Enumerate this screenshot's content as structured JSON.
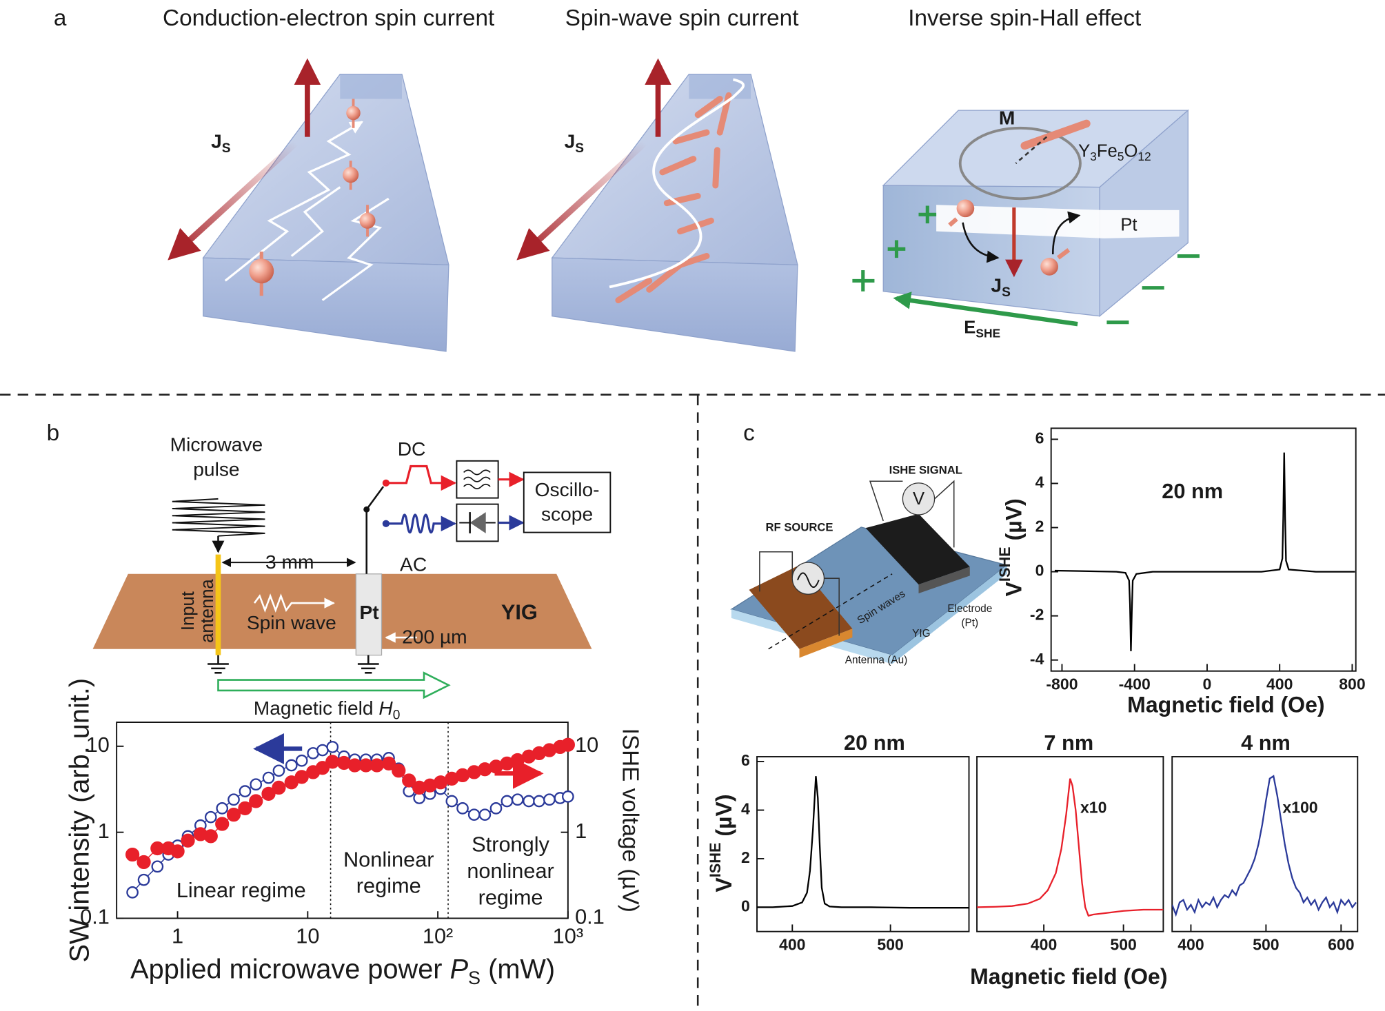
{
  "panel_labels": [
    "a",
    "b",
    "c"
  ],
  "panel_a": {
    "titles": [
      "Conduction-electron spin current",
      "Spin-wave spin current",
      "Inverse spin-Hall effect"
    ],
    "js_labels": [
      {
        "main": "J",
        "sub": "S"
      },
      {
        "main": "J",
        "sub": "S"
      },
      {
        "main": "J",
        "sub": "S"
      }
    ],
    "m_label": "M",
    "yig_formula": [
      "Y",
      "3",
      "Fe",
      "5",
      "O",
      "12"
    ],
    "pt_label": "Pt",
    "e_label": {
      "main": "E",
      "sub": "SHE"
    }
  },
  "panel_b_diagram": {
    "pulse_label": [
      "Microwave",
      "pulse"
    ],
    "dc": "DC",
    "ac": "AC",
    "scope": [
      "Oscillo-",
      "scope"
    ],
    "distance": "3 mm",
    "antenna": [
      "Input",
      "antenna"
    ],
    "spin_wave": "Spin wave",
    "pt": "Pt",
    "yig": "YIG",
    "width": "200 µm",
    "field": {
      "text": "Magnetic field ",
      "symbol": "H",
      "sub": "0"
    }
  },
  "panel_c_diagram": {
    "signal": "ISHE SIGNAL",
    "voltmeter": "V",
    "source": "RF SOURCE",
    "spin_waves": "Spin waves",
    "electrode": [
      "Electrode",
      "(Pt)"
    ],
    "yig": "YIG",
    "antenna": "Antenna (Au)"
  },
  "chart_data": [
    {
      "type": "scatter",
      "xlog": true,
      "ylog": true,
      "x": [
        0.45,
        0.55,
        0.7,
        0.85,
        1,
        1.2,
        1.5,
        1.8,
        2.2,
        2.7,
        3.3,
        4,
        5,
        6,
        7.5,
        9,
        11,
        13,
        15.5,
        19,
        23,
        28,
        34,
        42,
        50,
        60,
        72,
        87,
        105,
        128,
        155,
        190,
        230,
        280,
        340,
        410,
        500,
        600,
        720,
        870,
        1000
      ],
      "series": [
        {
          "color": "#2b3a9a",
          "marker": "open",
          "values": [
            0.2,
            0.28,
            0.4,
            0.55,
            0.7,
            0.9,
            1.2,
            1.5,
            1.9,
            2.4,
            3,
            3.6,
            4.3,
            5.2,
            6,
            6.8,
            8.3,
            9,
            9.8,
            7.6,
            7,
            7,
            7,
            7.3,
            5.5,
            3,
            2.5,
            2.8,
            3.2,
            2.3,
            1.9,
            1.6,
            1.6,
            1.9,
            2.3,
            2.4,
            2.3,
            2.3,
            2.4,
            2.5,
            2.6
          ]
        },
        {
          "color": "#e8202a",
          "marker": "filled",
          "axis": "y2",
          "values": [
            0.55,
            0.45,
            0.65,
            0.65,
            0.6,
            0.8,
            0.95,
            0.9,
            1.25,
            1.6,
            1.9,
            2.3,
            2.8,
            3.3,
            3.8,
            4.4,
            5,
            5.6,
            6.6,
            6.4,
            6,
            6,
            6,
            6.3,
            5.2,
            4,
            3.3,
            3.5,
            3.8,
            4.2,
            4.6,
            5,
            5.4,
            5.8,
            6.3,
            6.9,
            7.6,
            8.3,
            9,
            9.8,
            10.4
          ]
        }
      ],
      "xlim": [
        0.34,
        1000
      ],
      "ylim": [
        0.1,
        19
      ],
      "y2lim": [
        0.1,
        19
      ],
      "xticks": [
        1,
        10,
        {
          "value": 100,
          "label": "10²"
        },
        {
          "value": 1000,
          "label": "10³"
        }
      ],
      "yticks": [
        0.1,
        1,
        10
      ],
      "y2ticks": [
        0.1,
        1,
        10
      ],
      "vlines": [
        15,
        120
      ],
      "xlabel": {
        "text": "Applied microwave power ",
        "symbol": "P",
        "sub": "S",
        "rest": " (mW)"
      },
      "ylabel": "SW intensity (arb. unit.)",
      "y2label": "ISHE voltage (µV)",
      "regions": [
        [
          "Linear regime"
        ],
        [
          "Nonlinear",
          "regime"
        ],
        [
          "Strongly",
          "nonlinear",
          "regime"
        ]
      ]
    },
    {
      "type": "line",
      "title": "20 nm",
      "x": [
        -840,
        -700,
        -500,
        -450,
        -430,
        -425,
        -420,
        -415,
        -410,
        -390,
        -300,
        0,
        300,
        400,
        415,
        420,
        425,
        430,
        435,
        450,
        600,
        815
      ],
      "series": [
        {
          "color": "#000000",
          "values": [
            0.05,
            0.03,
            0,
            -0.05,
            -0.4,
            -1.5,
            -3.6,
            -1.8,
            -0.4,
            -0.1,
            0,
            0,
            0,
            0.1,
            0.6,
            2.5,
            5.4,
            2.5,
            0.5,
            0.1,
            0,
            0
          ]
        }
      ],
      "xlim": [
        -860,
        820
      ],
      "ylim": [
        -4.5,
        6.5
      ],
      "xticks": [
        -800,
        -400,
        0,
        400,
        800
      ],
      "yticks": [
        -4,
        -2,
        0,
        2,
        4,
        6
      ],
      "xlabel": "Magnetic field (Oe)",
      "ylabel": {
        "main": "V",
        "sup": "ISHE",
        "rest": " (µV)"
      }
    },
    {
      "type": "line",
      "title": "20 nm",
      "x": [
        364,
        380,
        400,
        410,
        415,
        418,
        421,
        424,
        426,
        428,
        430,
        433,
        438,
        450,
        480,
        520,
        580
      ],
      "series": [
        {
          "color": "#000000",
          "values": [
            0,
            0,
            0.05,
            0.2,
            0.6,
            1.5,
            3.2,
            5.4,
            4.5,
            2.5,
            0.8,
            0.15,
            0.03,
            0,
            0,
            -0.02,
            -0.02
          ]
        }
      ],
      "xlim": [
        364,
        580
      ],
      "ylim": [
        -1,
        6.2
      ],
      "xticks": [
        400,
        500
      ],
      "yticks": [
        0,
        2,
        4,
        6
      ],
      "ylabel": {
        "main": "V",
        "sup": "ISHE",
        "rest": " (µV)"
      }
    },
    {
      "type": "line",
      "title": "7 nm",
      "annotation": "x10",
      "x": [
        316,
        340,
        360,
        380,
        395,
        405,
        415,
        422,
        428,
        433,
        436,
        440,
        444,
        448,
        452,
        456,
        462,
        475,
        500,
        525,
        550
      ],
      "series": [
        {
          "color": "#e8202a",
          "values": [
            0,
            0.02,
            0.05,
            0.15,
            0.35,
            0.7,
            1.4,
            2.4,
            3.8,
            5.3,
            5.0,
            4.0,
            2.5,
            1.0,
            0.0,
            -0.35,
            -0.3,
            -0.25,
            -0.15,
            -0.1,
            -0.1
          ]
        }
      ],
      "xlim": [
        316,
        550
      ],
      "ylim": [
        -1,
        6.2
      ],
      "xticks": [
        400,
        500
      ],
      "xlabel": "Magnetic field (Oe)"
    },
    {
      "type": "line",
      "title": "4 nm",
      "annotation": "x100",
      "x": [
        375,
        380,
        385,
        390,
        395,
        400,
        405,
        410,
        415,
        420,
        425,
        430,
        435,
        440,
        445,
        450,
        455,
        460,
        465,
        470,
        475,
        480,
        485,
        490,
        495,
        500,
        505,
        510,
        515,
        520,
        525,
        530,
        535,
        540,
        545,
        550,
        555,
        560,
        565,
        570,
        575,
        580,
        585,
        590,
        595,
        600,
        605,
        610,
        615,
        620
      ],
      "series": [
        {
          "color": "#2b3a9a",
          "values": [
            0.1,
            -0.3,
            0.2,
            0.3,
            -0.1,
            0.1,
            -0.2,
            0.3,
            0.0,
            0.2,
            0.1,
            0.4,
            0.0,
            0.3,
            0.5,
            0.4,
            0.7,
            0.5,
            0.9,
            1.0,
            1.3,
            1.6,
            2.0,
            2.6,
            3.4,
            4.4,
            5.3,
            5.4,
            4.6,
            3.6,
            2.6,
            1.8,
            1.2,
            0.8,
            0.6,
            0.2,
            0.4,
            0.1,
            0.3,
            -0.1,
            0.2,
            0.4,
            0.0,
            0.2,
            -0.2,
            0.3,
            0.1,
            0.3,
            0.0,
            0.2
          ]
        }
      ],
      "xlim": [
        375,
        622
      ],
      "ylim": [
        -1,
        6.2
      ],
      "xticks": [
        400,
        500,
        600
      ]
    }
  ]
}
